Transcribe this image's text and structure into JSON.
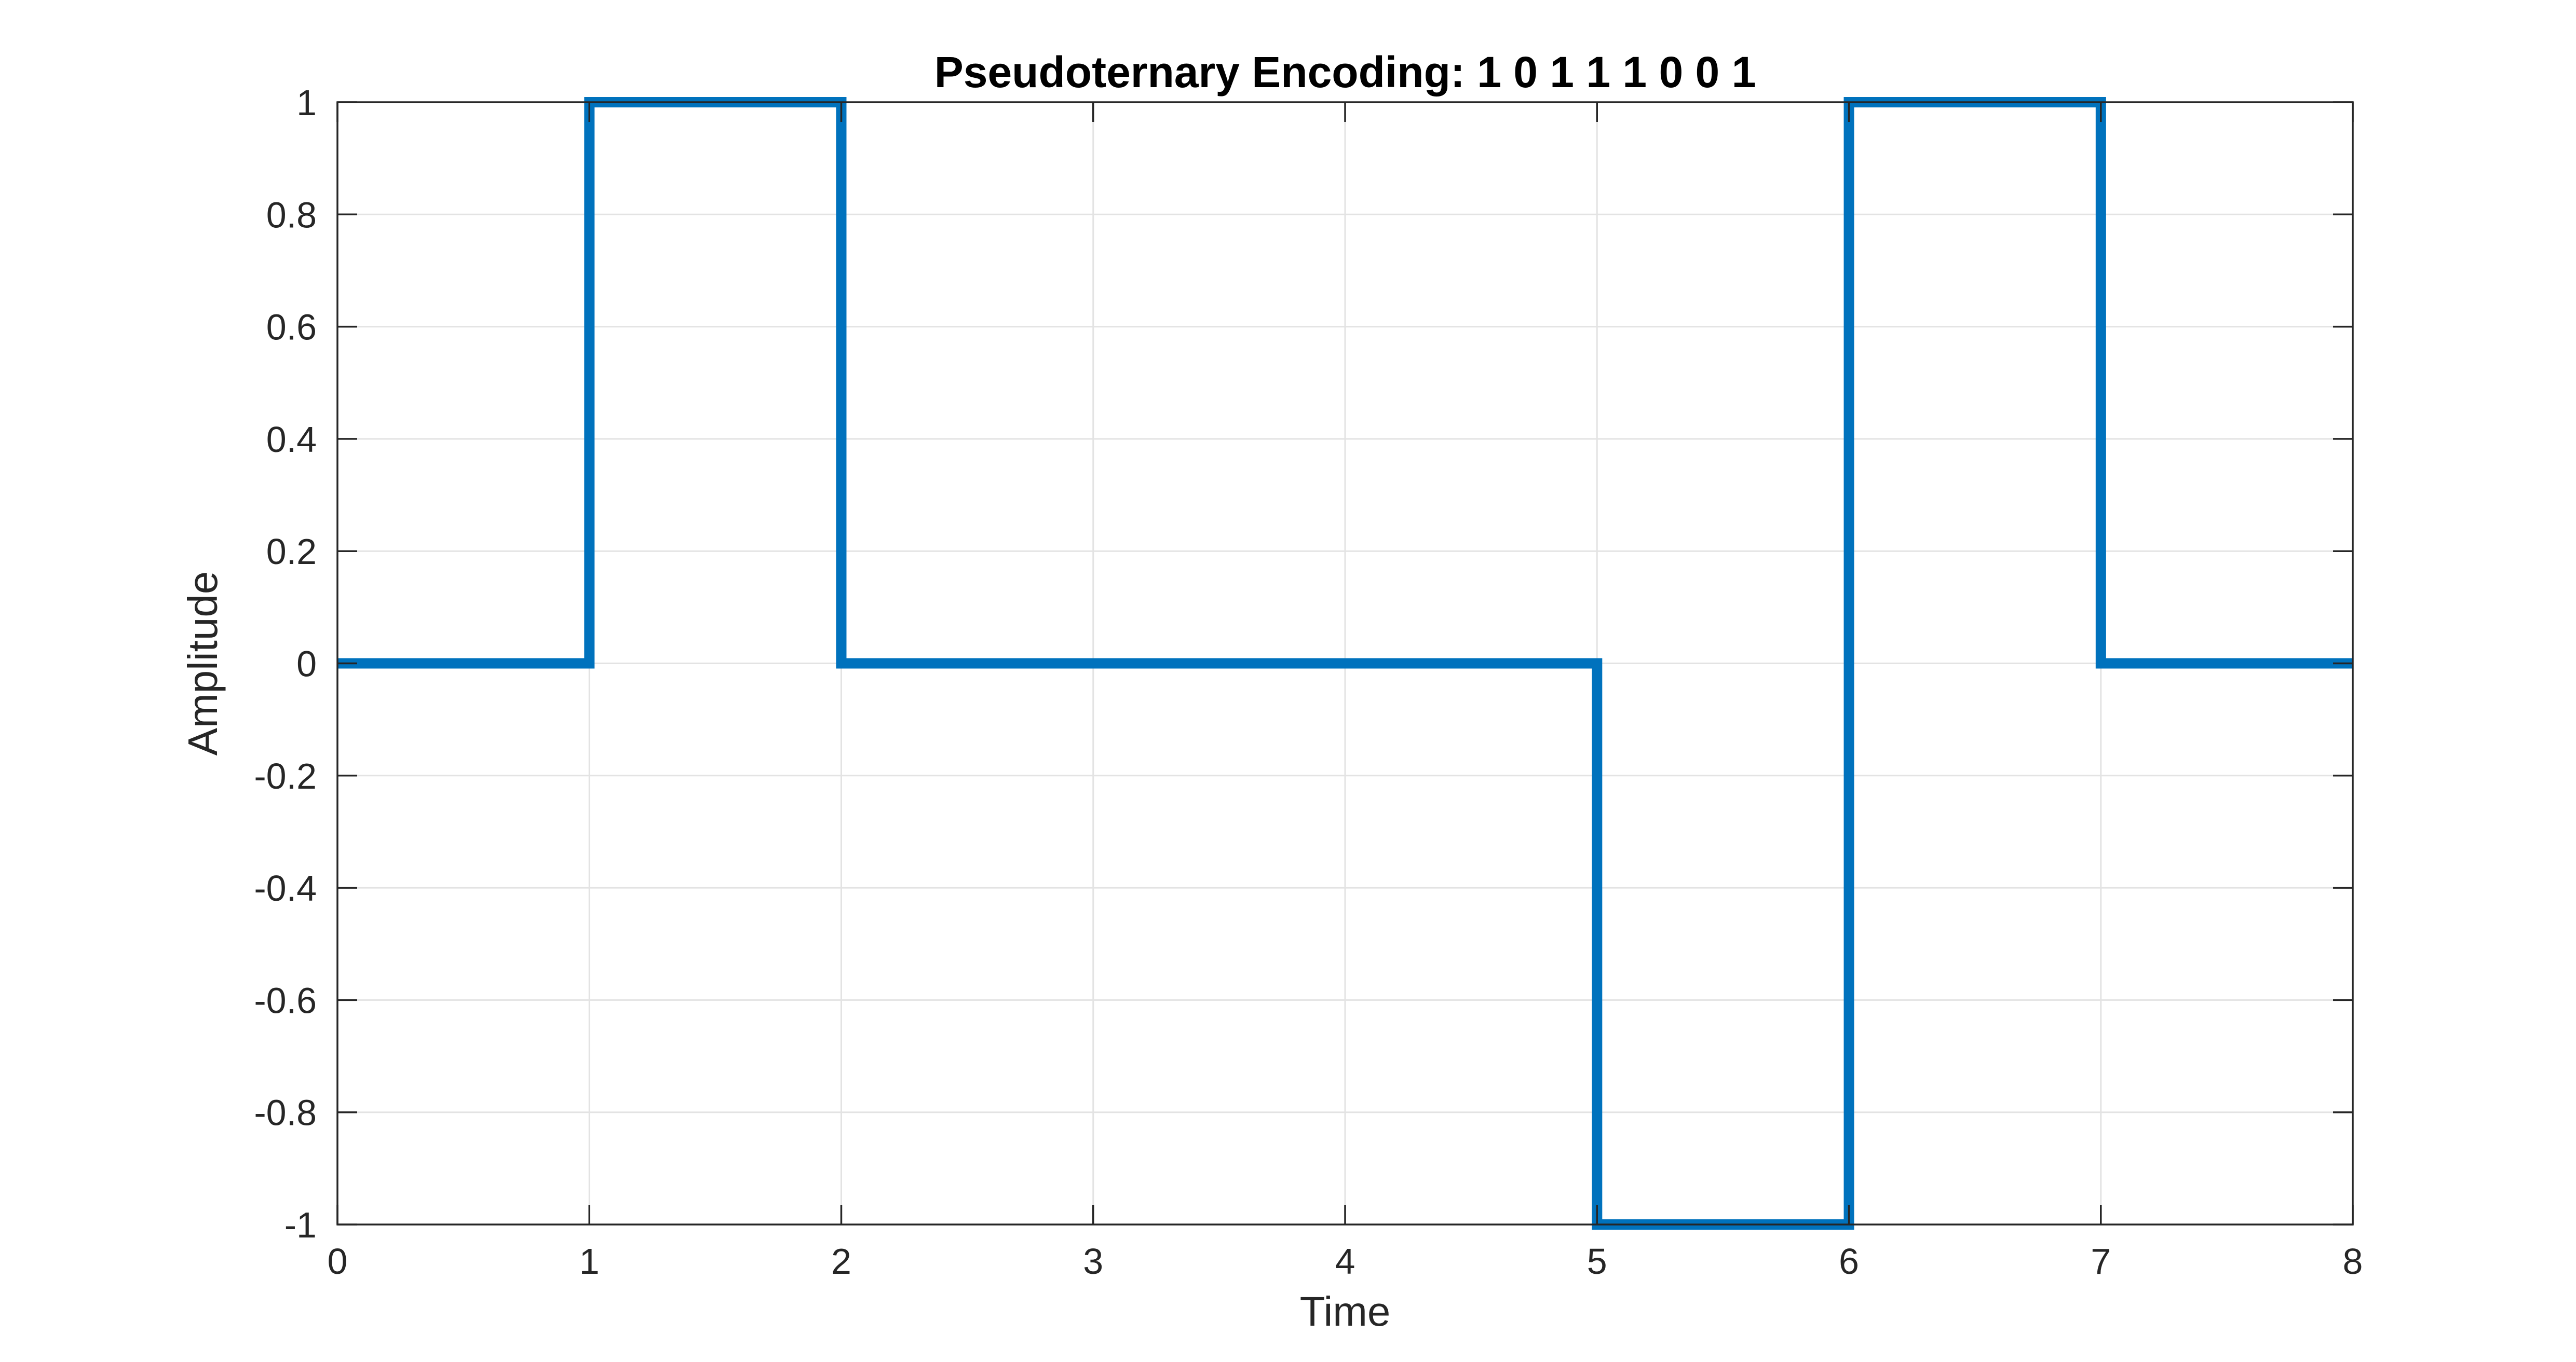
{
  "chart_data": {
    "type": "line",
    "step": true,
    "title": "Pseudoternary Encoding: 1 0 1 1 1 0 0 1",
    "xlabel": "Time",
    "ylabel": "Amplitude",
    "xlim": [
      0,
      8
    ],
    "ylim": [
      -1,
      1
    ],
    "xticks": [
      0,
      1,
      2,
      3,
      4,
      5,
      6,
      7,
      8
    ],
    "xtick_labels": [
      "0",
      "1",
      "2",
      "3",
      "4",
      "5",
      "6",
      "7",
      "8"
    ],
    "yticks": [
      -1,
      -0.8,
      -0.6,
      -0.4,
      -0.2,
      0,
      0.2,
      0.4,
      0.6,
      0.8,
      1
    ],
    "ytick_labels": [
      "-1",
      "-0.8",
      "-0.6",
      "-0.4",
      "-0.2",
      "0",
      "0.2",
      "0.4",
      "0.6",
      "0.8",
      "1"
    ],
    "grid": true,
    "legend": "none",
    "series": [
      {
        "color": "#0072BD",
        "x": [
          0,
          1,
          1,
          2,
          2,
          5,
          5,
          6,
          6,
          7,
          7,
          8
        ],
        "y": [
          0,
          0,
          1,
          1,
          0,
          0,
          -1,
          -1,
          1,
          1,
          0,
          0
        ]
      }
    ],
    "colors": {
      "line": "#0072BD",
      "grid": "#e3e3e3",
      "axes": "#262626",
      "background": "#ffffff"
    }
  }
}
